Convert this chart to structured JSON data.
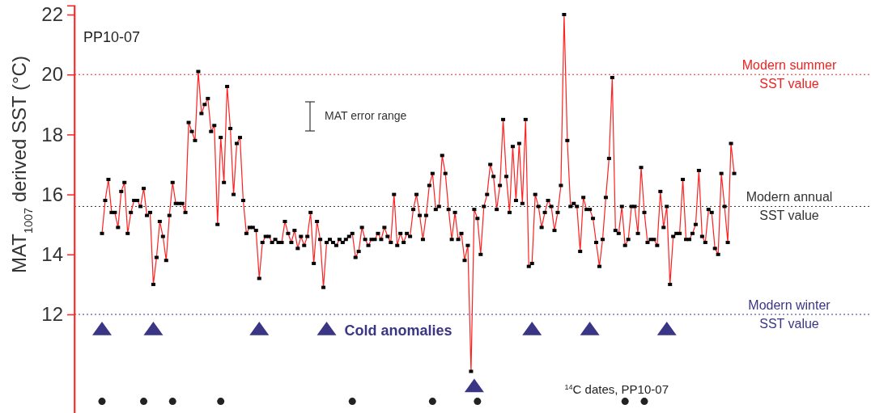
{
  "chart_data": {
    "type": "line",
    "title": "PP10-07",
    "ylabel": "MAT$_{1007}$ derived  SST (°C)",
    "categories": [
      null,
      null,
      null,
      null,
      null,
      null,
      null,
      null,
      null,
      null,
      null,
      null,
      null,
      null,
      null,
      null,
      null,
      null,
      null,
      null,
      null,
      null,
      null,
      null,
      null,
      null,
      null,
      null,
      null,
      null,
      null,
      null,
      null,
      null,
      null,
      null,
      null,
      null,
      null,
      null,
      null,
      null,
      null,
      null,
      null,
      null,
      null,
      null,
      null,
      null,
      null,
      null,
      null,
      null,
      null,
      null,
      null,
      null,
      null,
      null,
      null,
      null,
      null,
      null,
      null,
      null,
      null,
      null,
      null,
      null,
      null,
      null,
      null,
      null,
      null,
      null,
      null,
      null,
      null,
      null,
      null,
      null,
      null,
      null,
      null,
      null,
      null,
      null,
      null,
      null,
      null,
      null,
      null,
      null,
      null,
      null,
      null,
      null,
      null,
      null,
      null,
      null,
      null,
      null,
      null,
      null,
      null,
      null,
      null,
      null,
      null,
      null,
      null,
      null,
      null,
      null,
      null,
      null,
      null,
      null,
      null,
      null,
      null,
      null,
      null,
      null,
      null,
      null,
      null,
      null,
      null,
      null,
      null,
      null,
      null,
      null,
      null,
      null,
      null,
      null,
      null,
      null,
      null,
      null,
      null,
      null,
      null,
      null,
      null,
      null,
      null,
      null,
      null,
      null,
      null,
      null,
      null,
      null,
      null,
      null,
      null,
      null,
      null,
      null,
      null,
      null,
      null,
      null,
      null,
      null,
      null,
      null,
      null,
      null,
      null,
      null,
      null,
      null,
      null,
      null,
      null,
      null,
      null,
      null,
      null,
      null,
      null,
      null,
      null,
      null,
      null,
      null,
      null,
      null,
      null,
      null,
      null,
      null
    ],
    "series": [
      {
        "color": "#ff2020",
        "marker": "square",
        "values": [
          14.7,
          15.8,
          16.5,
          15.4,
          15.4,
          14.9,
          16.1,
          16.4,
          14.7,
          15.4,
          15.8,
          15.8,
          15.6,
          16.2,
          15.3,
          15.4,
          13.0,
          13.9,
          15.1,
          14.6,
          13.8,
          15.3,
          16.4,
          15.7,
          15.7,
          15.7,
          15.4,
          18.4,
          18.1,
          17.8,
          20.1,
          18.7,
          19.0,
          19.2,
          18.1,
          18.3,
          15.0,
          17.9,
          16.4,
          19.6,
          18.2,
          16.0,
          17.7,
          17.9,
          15.8,
          14.7,
          14.9,
          14.9,
          14.8,
          13.2,
          14.4,
          14.6,
          14.6,
          14.4,
          14.5,
          14.4,
          14.4,
          15.1,
          14.7,
          14.4,
          14.8,
          14.2,
          14.6,
          14.3,
          14.6,
          15.4,
          13.7,
          15.1,
          14.5,
          12.9,
          14.4,
          14.5,
          14.4,
          14.3,
          14.5,
          14.4,
          14.5,
          14.6,
          14.7,
          13.9,
          14.1,
          14.9,
          14.5,
          14.3,
          14.5,
          14.5,
          14.7,
          14.5,
          14.9,
          14.6,
          14.4,
          16.0,
          14.3,
          14.7,
          14.4,
          14.7,
          14.6,
          15.5,
          16.0,
          15.3,
          14.5,
          15.3,
          16.3,
          16.7,
          15.5,
          15.6,
          17.3,
          16.7,
          15.5,
          14.5,
          15.4,
          14.5,
          14.7,
          13.8,
          14.3,
          10.1,
          15.5,
          15.2,
          14.0,
          15.6,
          16.0,
          17.0,
          16.6,
          15.5,
          16.3,
          18.5,
          16.6,
          15.4,
          17.6,
          15.8,
          17.7,
          15.7,
          18.5,
          13.6,
          13.7,
          16.0,
          15.6,
          14.9,
          15.4,
          15.8,
          15.6,
          14.8,
          15.4,
          16.3,
          22.0,
          17.8,
          15.6,
          15.7,
          15.6,
          14.1,
          15.9,
          15.5,
          15.5,
          15.2,
          14.4,
          13.6,
          14.5,
          15.9,
          17.2,
          19.9,
          14.8,
          14.7,
          15.6,
          14.3,
          14.5,
          15.6,
          15.6,
          14.7,
          16.9,
          15.4,
          14.4,
          14.5,
          14.5,
          14.3,
          16.1,
          14.9,
          15.6,
          13.0,
          14.6,
          14.7,
          14.7,
          16.5,
          14.5,
          14.5,
          14.7,
          15.0,
          16.8,
          14.6,
          14.4,
          15.5,
          15.4,
          14.2,
          14.0,
          16.7,
          15.6,
          14.4,
          17.7,
          16.7
        ]
      },
      {
        "type": "scatter",
        "name": "Cold anomalies",
        "color": "#3a3585",
        "marker": "triangle",
        "values": [
          11.5,
          null,
          null,
          null,
          null,
          null,
          null,
          null,
          null,
          null,
          null,
          null,
          null,
          null,
          null,
          null,
          11.5,
          null,
          null,
          null,
          null,
          null,
          null,
          null,
          null,
          null,
          null,
          null,
          null,
          null,
          null,
          null,
          null,
          null,
          null,
          null,
          null,
          null,
          null,
          null,
          null,
          null,
          null,
          null,
          null,
          null,
          null,
          null,
          null,
          11.5,
          null,
          null,
          null,
          null,
          null,
          null,
          null,
          null,
          null,
          null,
          null,
          null,
          null,
          null,
          null,
          null,
          null,
          null,
          null,
          null,
          11.5,
          null,
          null,
          null,
          null,
          null,
          null,
          null,
          null,
          null,
          null,
          null,
          null,
          null,
          null,
          null,
          null,
          null,
          null,
          null,
          null,
          null,
          null,
          null,
          null,
          null,
          null,
          null,
          null,
          null,
          null,
          null,
          null,
          null,
          null,
          null,
          null,
          null,
          null,
          null,
          null,
          null,
          null,
          null,
          null,
          null,
          9.6,
          null,
          null,
          null,
          null,
          null,
          null,
          null,
          null,
          null,
          null,
          null,
          null,
          null,
          null,
          null,
          null,
          null,
          11.5,
          null,
          null,
          null,
          null,
          null,
          null,
          null,
          null,
          null,
          null,
          null,
          null,
          null,
          null,
          null,
          null,
          null,
          11.5,
          null,
          null,
          null,
          null,
          null,
          null,
          null,
          null,
          null,
          null,
          null,
          null,
          null,
          null,
          null,
          null,
          null,
          null,
          null,
          null,
          null,
          null,
          null,
          11.5,
          null,
          null,
          null,
          null,
          null,
          null,
          null,
          null,
          null,
          null,
          null,
          null,
          null,
          null,
          null,
          null,
          null,
          null,
          null,
          null,
          null
        ]
      },
      {
        "type": "scatter",
        "name": "$^{14}$C dates, PP10-07",
        "color": "#222222",
        "marker": "circle",
        "values": [
          9.1,
          null,
          null,
          null,
          null,
          null,
          null,
          null,
          null,
          null,
          null,
          null,
          null,
          9.1,
          null,
          null,
          null,
          null,
          null,
          null,
          null,
          null,
          9.1,
          null,
          null,
          null,
          null,
          null,
          null,
          null,
          null,
          null,
          null,
          null,
          null,
          null,
          null,
          9.1,
          null,
          null,
          null,
          null,
          null,
          null,
          null,
          null,
          null,
          null,
          null,
          null,
          null,
          null,
          null,
          null,
          null,
          null,
          null,
          null,
          null,
          null,
          null,
          null,
          null,
          null,
          null,
          null,
          null,
          null,
          null,
          null,
          null,
          null,
          null,
          null,
          null,
          null,
          null,
          null,
          9.1,
          null,
          null,
          null,
          null,
          null,
          null,
          null,
          null,
          null,
          null,
          null,
          null,
          null,
          null,
          null,
          null,
          null,
          null,
          null,
          null,
          null,
          null,
          null,
          null,
          9.1,
          null,
          null,
          null,
          null,
          null,
          null,
          null,
          null,
          null,
          null,
          null,
          null,
          null,
          9.1,
          null,
          null,
          null,
          null,
          null,
          null,
          null,
          null,
          null,
          null,
          null,
          null,
          null,
          null,
          null,
          null,
          null,
          null,
          null,
          null,
          null,
          null,
          null,
          null,
          null,
          null,
          null,
          null,
          null,
          null,
          null,
          null,
          null,
          null,
          null,
          null,
          null,
          null,
          null,
          null,
          null,
          null,
          null,
          null,
          null,
          9.1,
          null,
          null,
          null,
          null,
          null,
          9.1,
          null,
          null,
          null,
          null,
          null,
          null,
          null,
          null,
          null,
          null,
          null,
          null,
          null,
          null,
          null,
          null,
          null,
          null,
          null,
          null,
          null,
          null,
          null,
          null,
          null,
          null,
          null,
          null
        ]
      }
    ],
    "ylim": [
      8.7,
      22.3
    ],
    "yticks": [
      12,
      14,
      16,
      18,
      20,
      22
    ],
    "ref_lines": [
      {
        "axis": "y",
        "value": 20,
        "label": "Modern summer SST value",
        "color": "#ee2222",
        "line_style": "dotted"
      },
      {
        "axis": "y",
        "value": 15.6,
        "label": "Modern annual SST value",
        "color": "#333333",
        "line_style": "dotted"
      },
      {
        "axis": "y",
        "value": 12,
        "label": "Modern winter SST value",
        "color": "#3a3585",
        "line_style": "dotted"
      }
    ],
    "annotations": [
      "MAT error range"
    ]
  }
}
